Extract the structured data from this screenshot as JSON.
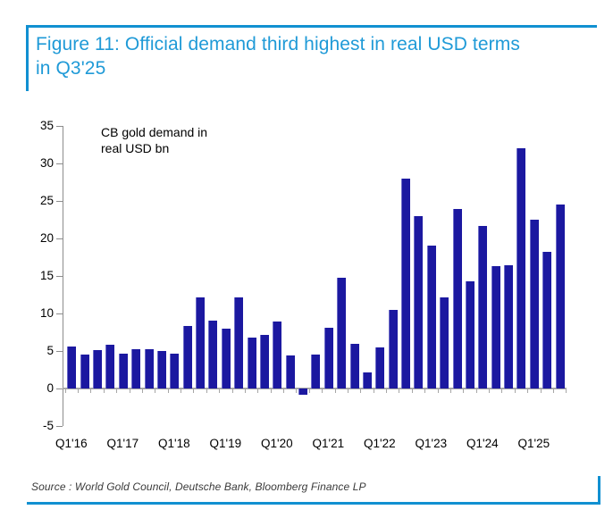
{
  "figure": {
    "title_line1": "Figure 11: Official demand third highest in real USD terms",
    "title_line2": "in Q3'25",
    "source": "Source : World Gold Council, Deutsche Bank, Bloomberg Finance LP"
  },
  "annotation": {
    "line1": "CB gold demand in",
    "line2": "real USD bn"
  },
  "colors": {
    "accent_blue": "#1190D1",
    "title_blue": "#1F9AD7",
    "bar_navy": "#1B18A0",
    "axis_gray": "#A6A6A6"
  },
  "chart_data": {
    "type": "bar",
    "title": "Figure 11: Official demand third highest in real USD terms in Q3'25",
    "annotation": "CB gold demand in real USD bn",
    "ylabel": "real USD bn",
    "xlabel": "",
    "ylim": [
      -5,
      35
    ],
    "y_ticks": [
      35,
      30,
      25,
      20,
      15,
      10,
      5,
      0,
      -5
    ],
    "grid": "off",
    "legend": "none",
    "source": "World Gold Council, Deutsche Bank, Bloomberg Finance LP",
    "x_axis_labels": [
      "Q1'16",
      "Q1'17",
      "Q1'18",
      "Q1'19",
      "Q1'20",
      "Q1'21",
      "Q1'22",
      "Q1'23",
      "Q1'24",
      "Q1'25"
    ],
    "categories": [
      "Q1'16",
      "Q2'16",
      "Q3'16",
      "Q4'16",
      "Q1'17",
      "Q2'17",
      "Q3'17",
      "Q4'17",
      "Q1'18",
      "Q2'18",
      "Q3'18",
      "Q4'18",
      "Q1'19",
      "Q2'19",
      "Q3'19",
      "Q4'19",
      "Q1'20",
      "Q2'20",
      "Q3'20",
      "Q4'20",
      "Q1'21",
      "Q2'21",
      "Q3'21",
      "Q4'21",
      "Q1'22",
      "Q2'22",
      "Q3'22",
      "Q4'22",
      "Q1'23",
      "Q2'23",
      "Q3'23",
      "Q4'23",
      "Q1'24",
      "Q2'24",
      "Q3'24",
      "Q4'24",
      "Q1'25",
      "Q2'25",
      "Q3'25"
    ],
    "values": [
      5.6,
      4.5,
      5.1,
      5.8,
      4.7,
      5.2,
      5.2,
      5.0,
      4.6,
      8.3,
      12.1,
      9.0,
      8.0,
      12.2,
      6.8,
      7.1,
      8.9,
      4.4,
      -0.8,
      4.5,
      8.1,
      14.8,
      6.0,
      2.2,
      5.5,
      10.5,
      28.0,
      23.0,
      19.0,
      12.1,
      23.9,
      14.3,
      21.7,
      16.3,
      16.4,
      32.0,
      22.5,
      18.2,
      24.5
    ]
  }
}
